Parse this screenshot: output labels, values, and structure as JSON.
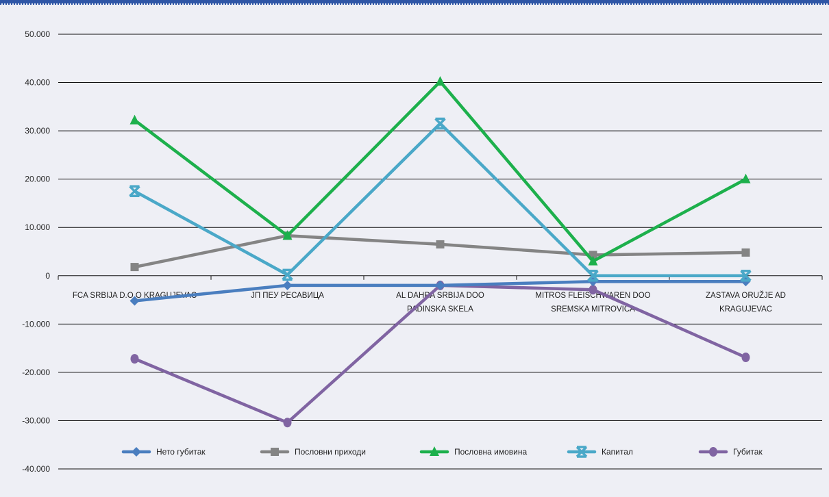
{
  "chart_data": {
    "type": "line",
    "categories": [
      [
        "FCA SRBIJA D.O.O KRAGUJEVAC"
      ],
      [
        "JП ПЕУ РЕСАВИЦА"
      ],
      [
        "AL DAHRA SRBIJA DOO",
        "PADINSKA SKELA"
      ],
      [
        "MITROS FLEISCHWAREN DOO",
        "SREMSKA MITROVICA"
      ],
      [
        "ZASTAVA ORUŽJE AD",
        "KRAGUJEVAC"
      ]
    ],
    "ylim": [
      -40000,
      50000
    ],
    "yticks": [
      "-40.000",
      "-30.000",
      "-20.000",
      "-10.000",
      "0",
      "10.000",
      "20.000",
      "30.000",
      "40.000",
      "50.000"
    ],
    "ytick_values": [
      -40000,
      -30000,
      -20000,
      -10000,
      0,
      10000,
      20000,
      30000,
      40000,
      50000
    ],
    "grid": true,
    "legend_position": "bottom",
    "series": [
      {
        "name": "Нето губитак",
        "color": "#4a7ebf",
        "marker": "diamond",
        "values": [
          -5200,
          -2000,
          -2000,
          -1200,
          -1200
        ]
      },
      {
        "name": "Пословни приходи",
        "color": "#848484",
        "marker": "square",
        "values": [
          1800,
          8300,
          6500,
          4300,
          4800
        ]
      },
      {
        "name": "Пословна имовина",
        "color": "#1db04c",
        "marker": "triangle",
        "values": [
          32200,
          8300,
          40200,
          3000,
          20000
        ]
      },
      {
        "name": "Капитал",
        "color": "#4aa8c8",
        "marker": "x",
        "values": [
          17500,
          200,
          31500,
          0,
          0
        ]
      },
      {
        "name": "Губитак",
        "color": "#8064a2",
        "marker": "circle",
        "values": [
          -17200,
          -30400,
          -2000,
          -2900,
          -16900
        ]
      }
    ]
  }
}
